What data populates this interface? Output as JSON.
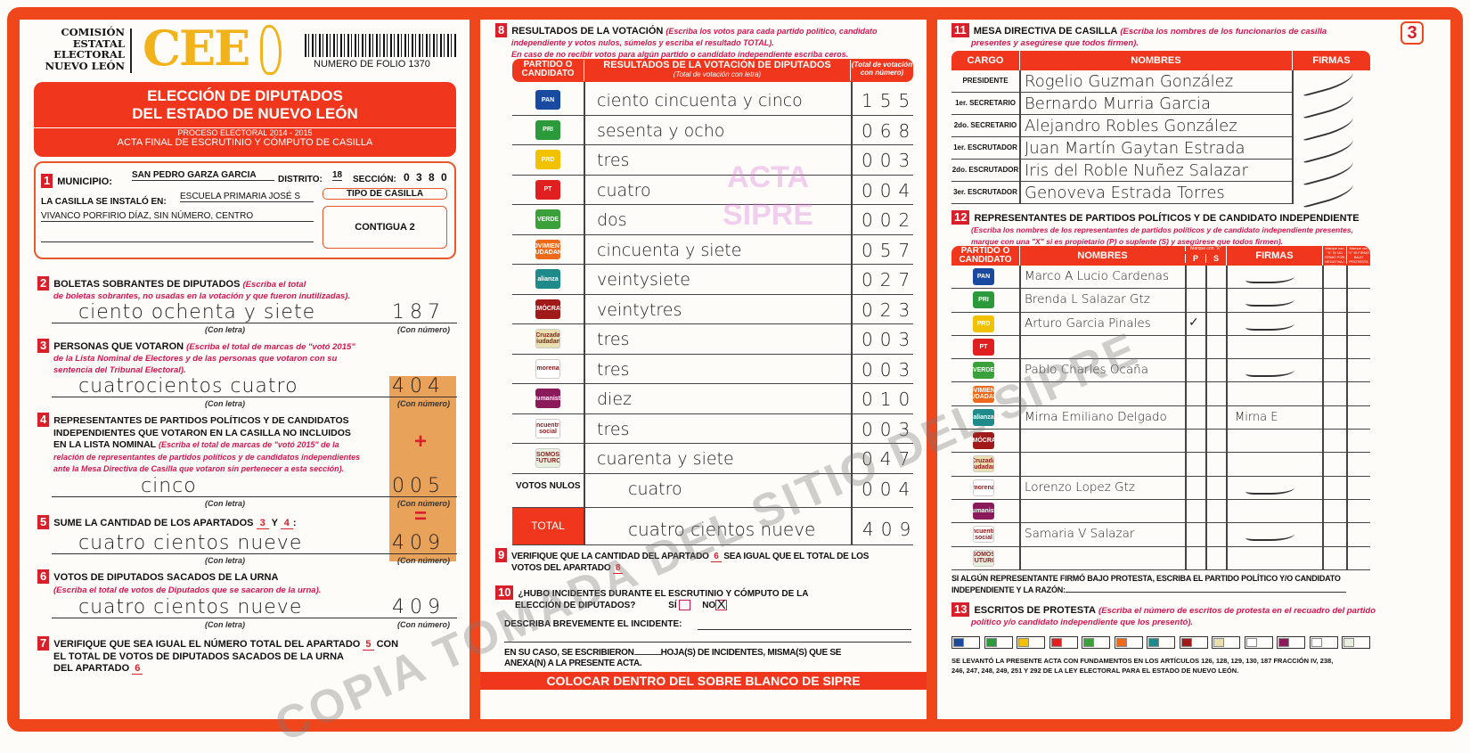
{
  "colors": {
    "accent": "#f0461c",
    "label_red": "#d3164f",
    "tan_box": "#e9a25a"
  },
  "watermark": "COPIA TOMADA DEL SITIO DEL SIPRE",
  "stamp": [
    "ACTA",
    "SIPRE"
  ],
  "header": {
    "org": [
      "COMISIÓN",
      "ESTATAL",
      "ELECTORAL",
      "NUEVO LEÓN"
    ],
    "logo": "CEE",
    "folio": "NUMERO DE FOLIO 1370",
    "title1": "ELECCIÓN DE DIPUTADOS",
    "title2": "DEL ESTADO DE NUEVO LEÓN",
    "process": "PROCESO ELECTORAL  2014 - 2015",
    "acta": "ACTA FINAL DE ESCRUTINIO Y CÓMPUTO DE CASILLA",
    "page_number": "3"
  },
  "s1": {
    "n": "1",
    "municipio_label": "MUNICIPIO:",
    "municipio": "SAN PEDRO GARZA GARCIA",
    "distrito_label": "DISTRITO:",
    "distrito": "18",
    "seccion_label": "SECCIÓN:",
    "seccion": "0 3 8 0",
    "instalo_label": "LA CASILLA SE INSTALÓ EN:",
    "instalo1": "ESCUELA PRIMARIA JOSÉ S",
    "instalo2": "VIVANCO PORFIRIO DÍAZ, SIN NÚMERO, CENTRO",
    "tipo_label": "TIPO DE CASILLA",
    "tipo": "CONTIGUA 2"
  },
  "con_letra": "(Con letra)",
  "con_numero": "(Con número)",
  "s2": {
    "n": "2",
    "title": "BOLETAS SOBRANTES DE DIPUTADOS",
    "note1": "(Escriba el total",
    "note2": "de boletas sobrantes, no usadas en la votación y que fueron inutilizadas).",
    "letra": "ciento ochenta y siete",
    "numero": "187"
  },
  "s3": {
    "n": "3",
    "title": "PERSONAS QUE VOTARON",
    "note1": "(Escriba el total de marcas de \"votó 2015\"",
    "note2": "de la Lista Nominal de Electores y de las personas que votaron con su",
    "note3": "sentencia del Tribunal Electoral).",
    "letra": "cuatrocientos cuatro",
    "numero": "404"
  },
  "s4": {
    "n": "4",
    "t1": "REPRESENTANTES DE PARTIDOS POLÍTICOS Y DE CANDIDATOS",
    "t2": "INDEPENDIENTES QUE VOTARON EN LA CASILLA NO INCLUIDOS",
    "t3": "EN LA LISTA NOMINAL",
    "note1": "(Escriba el total de marcas de \"votó 2015\" de la",
    "note2": "relación de representantes de partidos políticos y de candidatos independientes",
    "note3": "ante la Mesa Directiva de Casilla que votaron sin pertenecer a esta sección).",
    "letra": "cinco",
    "numero": "005",
    "plus": "+"
  },
  "s5": {
    "n": "5",
    "title": "SUME LA CANTIDAD DE LOS APARTADOS",
    "a": "3",
    "y": "Y",
    "b": "4",
    "colon": ":",
    "letra": "cuatro cientos nueve",
    "numero": "409",
    "eq": "="
  },
  "s6": {
    "n": "6",
    "title": "VOTOS DE DIPUTADOS SACADOS DE LA URNA",
    "note": "(Escriba el total de votos de Diputados que se sacaron de la urna).",
    "letra": "cuatro cientos nueve",
    "numero": "409"
  },
  "s7": {
    "n": "7",
    "t1": "VERIFIQUE QUE SEA IGUAL EL NÚMERO TOTAL DEL APARTADO",
    "a": "5",
    "con": "CON",
    "t2": "EL TOTAL DE VOTOS DE DIPUTADOS SACADOS DE LA URNA",
    "t3": "DEL APARTADO",
    "b": "6"
  },
  "s8": {
    "n": "8",
    "title": "RESULTADOS DE LA VOTACIÓN",
    "note1": "(Escriba los votos para cada partido político, candidato",
    "note2": "independiente y votos nulos, súmelos y escriba el resultado TOTAL).",
    "note3": "En caso de no recibir votos para algún partido o candidato independiente escriba ceros.",
    "h_party": "PARTIDO O CANDIDATO",
    "h_result": "RESULTADOS DE LA VOTACIÓN DE DIPUTADOS",
    "h_result_sub": "(Total de votación con letra)",
    "h_num": "(Total de votación con número)",
    "rows": [
      {
        "logo": "PAN",
        "color": "#1a4aa0",
        "letra": "ciento cincuenta y cinco",
        "numero": "155"
      },
      {
        "logo": "PRI",
        "color": "#2a9a3a",
        "letra": "sesenta y ocho",
        "numero": "068"
      },
      {
        "logo": "PRD",
        "color": "#f2c200",
        "letra": "tres",
        "numero": "003"
      },
      {
        "logo": "PT",
        "color": "#e02020",
        "letra": "cuatro",
        "numero": "004"
      },
      {
        "logo": "VERDE",
        "color": "#3aa03a",
        "letra": "dos",
        "numero": "002"
      },
      {
        "logo": "MOVIMIENTO CIUDADANO",
        "color": "#ee6a1a",
        "letra": "cincuenta y siete",
        "numero": "057"
      },
      {
        "logo": "alianza",
        "color": "#1e8a8a",
        "letra": "veintysiete",
        "numero": "027"
      },
      {
        "logo": "DEMÓCRATA",
        "color": "#a01a1a",
        "letra": "veintytres",
        "numero": "023"
      },
      {
        "logo": "Cruzada Ciudadana",
        "color": "#e8e0b0",
        "letra": "tres",
        "numero": "003"
      },
      {
        "logo": "morena",
        "color": "#ffffff",
        "letra": "tres",
        "numero": "003"
      },
      {
        "logo": "Humanista",
        "color": "#8a1a5a",
        "letra": "diez",
        "numero": "010"
      },
      {
        "logo": "encuentro social",
        "color": "#ffffff",
        "letra": "tres",
        "numero": "003"
      },
      {
        "logo": "SOMOS FUTURO",
        "color": "#e8f0e0",
        "letra": "cuarenta y siete",
        "numero": "047"
      }
    ],
    "nulos_label": "VOTOS NULOS",
    "nulos_letra": "cuatro",
    "nulos_numero": "004",
    "total_label": "TOTAL",
    "total_letra": "cuatro cientos nueve",
    "total_numero": "409"
  },
  "s9": {
    "n": "9",
    "t1": "VERIFIQUE QUE LA CANTIDAD DEL APARTADO",
    "a": "6",
    "t2": "SEA IGUAL QUE EL TOTAL DE LOS",
    "t3": "VOTOS DEL APARTADO",
    "b": "8"
  },
  "s10": {
    "n": "10",
    "t1": "¿HUBO INCIDENTES DURANTE EL ESCRUTINIO Y CÓMPUTO DE LA",
    "t2": "ELECCIÓN DE DIPUTADOS?",
    "si": "SÍ",
    "no": "NO",
    "no_mark": "X",
    "describe": "DESCRIBA BREVEMENTE EL INCIDENTE:",
    "en_su_caso": "EN SU CASO, SE ESCRIBIERON",
    "hojas": "HOJA(S) DE INCIDENTES, MISMA(S) QUE SE",
    "anexa": "ANEXA(N) A LA PRESENTE ACTA."
  },
  "footer_mid": "COLOCAR DENTRO DEL SOBRE BLANCO DE SIPRE",
  "s11": {
    "n": "11",
    "title": "MESA DIRECTIVA DE CASILLA",
    "note1": "(Escriba los nombres de los funcionarios de casilla",
    "note2": "presentes y asegúrese que todos firmen).",
    "h_cargo": "CARGO",
    "h_nombres": "NOMBRES",
    "h_firmas": "FIRMAS",
    "rows": [
      {
        "cargo": "PRESIDENTE",
        "nombre": "Rogelio Guzman González"
      },
      {
        "cargo": "1er. SECRETARIO",
        "nombre": "Bernardo Murria Garcia"
      },
      {
        "cargo": "2do. SECRETARIO",
        "nombre": "Alejandro Robles González"
      },
      {
        "cargo": "1er. ESCRUTADOR",
        "nombre": "Juan Martín Gaytan Estrada"
      },
      {
        "cargo": "2do. ESCRUTADOR",
        "nombre": "Iris del Roble Nuñez Salazar"
      },
      {
        "cargo": "3er. ESCRUTADOR",
        "nombre": "Genoveva Estrada Torres"
      }
    ]
  },
  "s12": {
    "n": "12",
    "title": "REPRESENTANTES DE PARTIDOS POLÍTICOS Y DE CANDIDATO INDEPENDIENTE",
    "note1": "(Escriba los nombres de los representantes de partidos políticos y de candidato independiente presentes,",
    "note2": "marque con una \"X\" si es propietario (P) o suplente (S) y asegúrese que todos firmen).",
    "h_party": "PARTIDO O CANDIDATO",
    "h_nombres": "NOMBRES",
    "h_marque": "Marque con \"X\"",
    "h_p": "P",
    "h_s": "S",
    "h_firmas": "FIRMAS",
    "h_neg": "Marque con \"X\" SI NO FIRMÓ POR NEGATIVA / AUSENCIA",
    "h_prot": "Marque con \"X\" SI FIRMÓ BAJO PROTESTA",
    "rows": [
      {
        "nombre": "Marco A Lucio Cardenas",
        "p": "",
        "firma": "signed"
      },
      {
        "nombre": "Brenda L Salazar Gtz",
        "p": "",
        "firma": "signed"
      },
      {
        "nombre": "Arturo Garcia Pinales",
        "p": "✓",
        "firma": "signed"
      },
      {
        "nombre": "",
        "p": "",
        "firma": ""
      },
      {
        "nombre": "Pablo Charles Ocaña",
        "p": "",
        "firma": "signed"
      },
      {
        "nombre": "",
        "p": "",
        "firma": ""
      },
      {
        "nombre": "Mirna Emiliano Delgado",
        "p": "",
        "firma": "Mirna E"
      },
      {
        "nombre": "",
        "p": "",
        "firma": ""
      },
      {
        "nombre": "",
        "p": "",
        "firma": ""
      },
      {
        "nombre": "Lorenzo Lopez Gtz",
        "p": "",
        "firma": "signed"
      },
      {
        "nombre": "",
        "p": "",
        "firma": ""
      },
      {
        "nombre": "Samaria V Salazar",
        "p": "",
        "firma": "signed"
      },
      {
        "nombre": "",
        "p": "",
        "firma": ""
      }
    ],
    "protesta1": "SI ALGÚN REPRESENTANTE FIRMÓ BAJO PROTESTA, ESCRIBA EL PARTIDO POLÍTICO Y/O CANDIDATO",
    "protesta2": "INDEPENDIENTE Y LA RAZÓN:"
  },
  "s13": {
    "n": "13",
    "title": "ESCRITOS DE PROTESTA",
    "note1": "(Escriba el número de escritos de protesta en el recuadro del partido",
    "note2": "político y/o candidato independiente que los presentó).",
    "legal1": "SE LEVANTÓ LA PRESENTE ACTA CON FUNDAMENTOS EN LOS ARTÍCULOS 126, 128, 129, 130, 187 FRACCIÓN IV, 238,",
    "legal2": "246, 247, 248, 249, 251 Y 292 DE LA LEY ELECTORAL PARA EL ESTADO DE NUEVO LEÓN."
  }
}
